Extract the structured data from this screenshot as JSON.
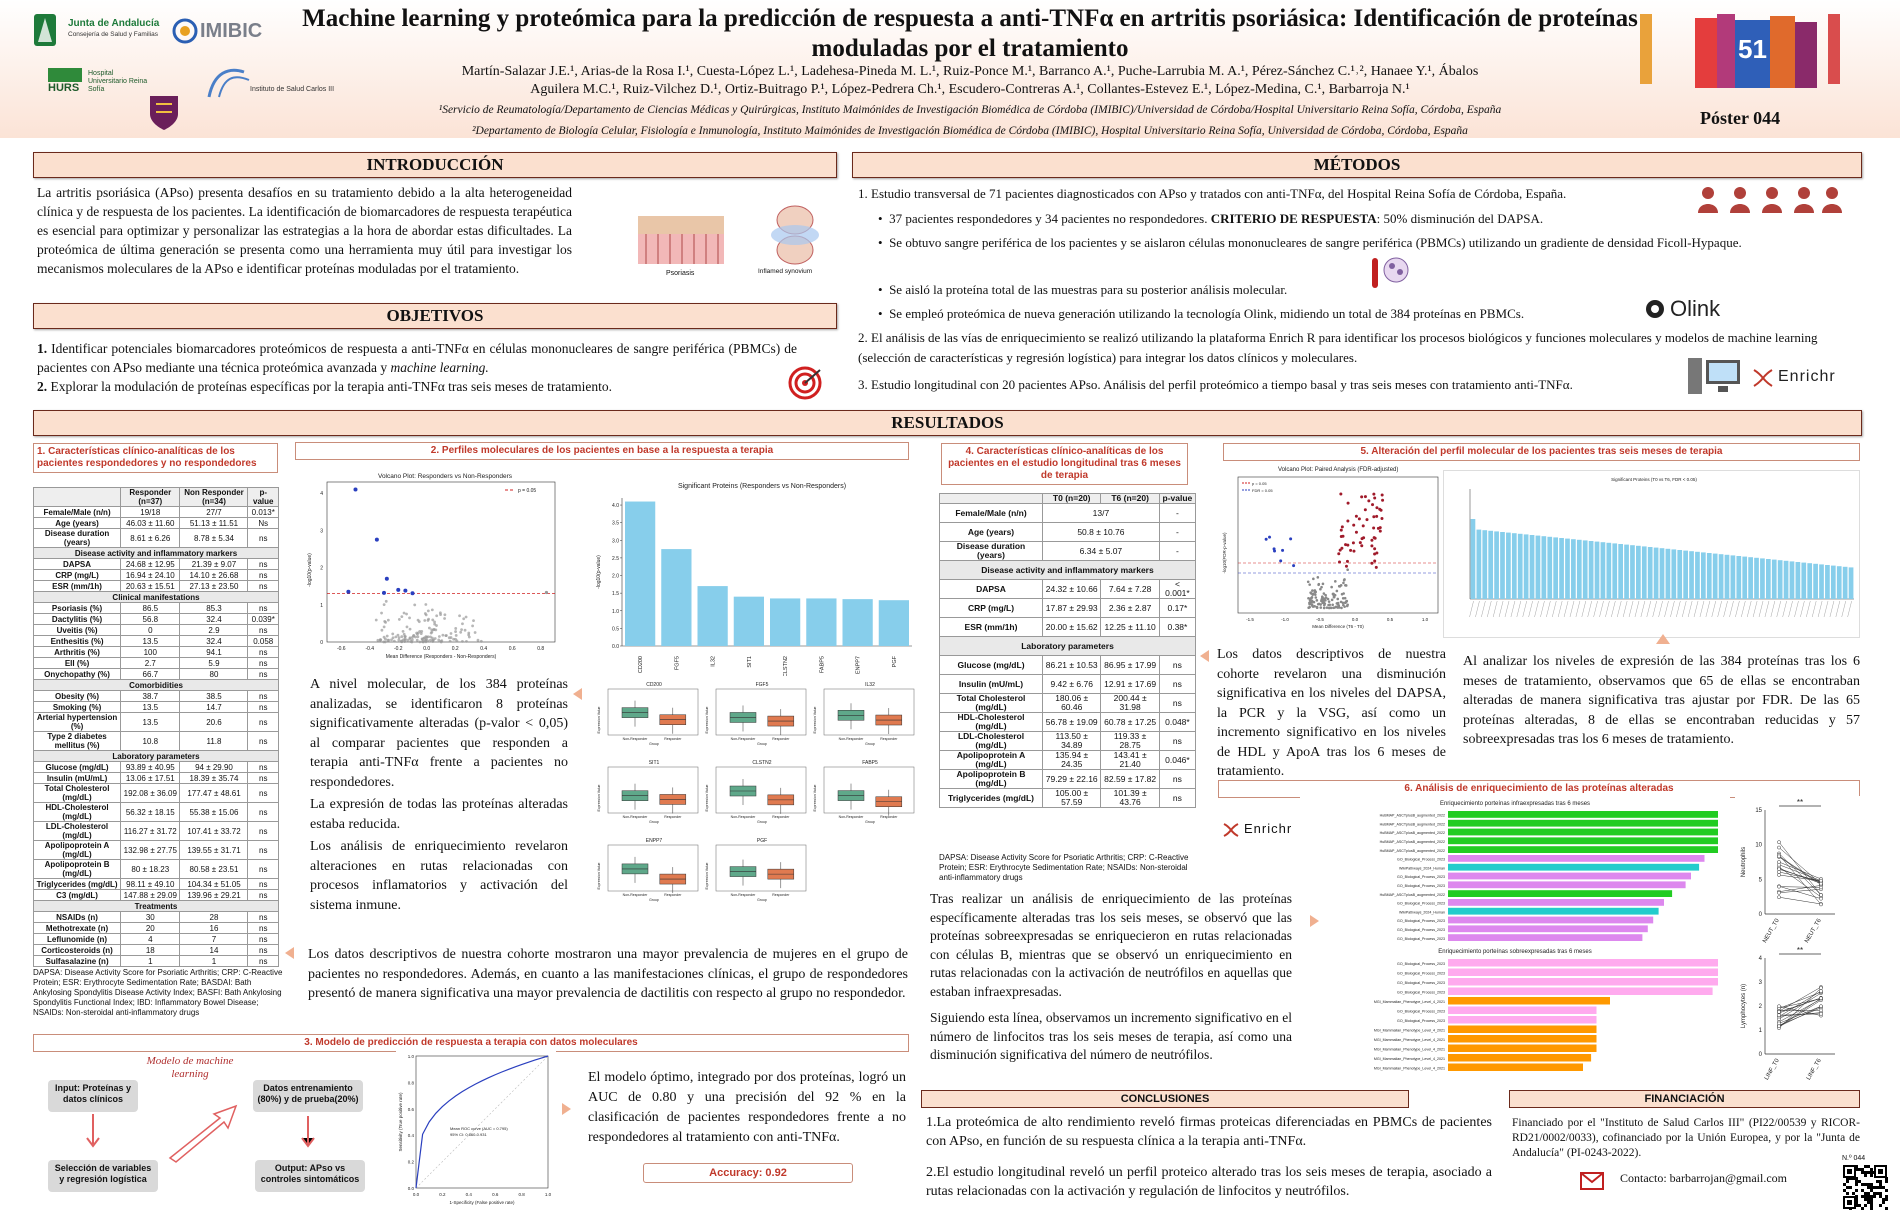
{
  "header": {
    "title": "Machine learning y proteómica para la predicción de respuesta a anti-TNFα en artritis psoriásica: Identificación de proteínas moduladas por el tratamiento",
    "authors_line1": "Martín-Salazar J.E.¹, Arias-de la Rosa I.¹, Cuesta-López L.¹, Ladehesa-Pineda M. L.¹, Ruiz-Ponce M.¹, Barranco A.¹, Puche-Larrubia M. A.¹, Pérez-Sánchez C.¹˒², Hanaee Y.¹, Ábalos",
    "authors_line2": "Aguilera M.C.¹, Ruiz-Vilchez D.¹, Ortiz-Buitrago P.¹, López-Pedrera Ch.¹, Escudero-Contreras A.¹, Collantes-Estevez E.¹, López-Medina, C.¹, Barbarroja N.¹",
    "affiliation1": "¹Servicio de Reumatología/Departamento de Ciencias Médicas y Quirúrgicas, Instituto Maimónides de Investigación Biomédica de Córdoba (IMIBIC)/Universidad de Córdoba/Hospital Universitario Reina Sofía, Córdoba, España",
    "affiliation2": "²Departamento de Biología Celular, Fisiología e Inmunología, Instituto Maimónides de Investigación Biomédica de Córdoba (IMIBIC), Hospital Universitario Reina Sofía, Universidad de Córdoba, Córdoba, España",
    "poster_number": "Póster 044",
    "logos": {
      "junta": "Junta de Andalucía",
      "junta_sub": "Consejería de Salud y Familias",
      "imibic": "IMIBIC",
      "hurs": "HURS",
      "hurs_sub": "Hospital Universitario Reina Sofía",
      "isciii": "Instituto de Salud Carlos III",
      "congress_number": "51"
    }
  },
  "intro": {
    "heading": "INTRODUCCIÓN",
    "text": "La artritis psoriásica (APso) presenta desafíos en su tratamiento debido a la alta heterogeneidad clínica y de respuesta de los pacientes. La identificación de biomarcadores de respuesta terapéutica es esencial para optimizar y personalizar las estrategias a la hora de abordar estas dificultades. La proteómica de última generación se presenta como una herramienta muy útil para investigar los mecanismos moleculares de la APso e identificar proteínas moduladas por el tratamiento.",
    "img_label1": "Psoriasis",
    "img_label2": "Inflamed synovium"
  },
  "objectives": {
    "heading": "OBJETIVOS",
    "item1_num": "1.",
    "item1": "Identificar potenciales biomarcadores proteómicos de respuesta a anti-TNFα en células mononucleares de sangre periférica (PBMCs) de pacientes con APso mediante una técnica proteómica avanzada y ",
    "item1_em": "machine learning.",
    "item2_num": "2.",
    "item2": "Explorar la modulación de proteínas específicas por la terapia anti-TNFα tras seis meses de tratamiento."
  },
  "methods": {
    "heading": "MÉTODOS",
    "l1": "1. Estudio transversal de 71 pacientes diagnosticados con APso y tratados con anti-TNFα, del Hospital Reina Sofía de Córdoba, España.",
    "b1": "37 pacientes respondedores y 34 pacientes no respondedores. ",
    "b1_strong": "CRITERIO DE RESPUESTA",
    "b1_tail": ": 50% disminución del DAPSA.",
    "b2": "Se obtuvo sangre periférica de los pacientes y se aislaron células mononucleares de sangre periférica (PBMCs) utilizando un gradiente de densidad Ficoll-Hypaque.",
    "b3": "Se aisló la proteína total de las muestras para su posterior análisis molecular.",
    "b4": "Se empleó proteómica de nueva generación utilizando la tecnología Olink, midiendo un total de 384 proteínas en PBMCs.",
    "l2": "2. El análisis de las vías de enriquecimiento se realizó utilizando la plataforma Enrich R para identificar los procesos biológicos y funciones moleculares y modelos de machine learning (selección de características y regresión logística) para integrar los datos clínicos y moleculares.",
    "l3": "3. Estudio longitudinal con 20 pacientes APso. Análisis del perfil proteómico a tiempo basal y tras seis meses con tratamiento anti-TNFα.",
    "olink": "Olink",
    "enrichr": "Enrichr"
  },
  "results": {
    "heading": "RESULTADOS",
    "s1_title": "1. Características clínico-analíticas de los pacientes respondedores y no respondedores",
    "s2_title": "2. Perfiles moleculares de los pacientes en base a la respuesta a terapia",
    "s3_title": "3. Modelo de predicción de respuesta a terapia con datos moleculares",
    "s4_title": "4. Características clínico-analíticas de los pacientes en el estudio longitudinal tras 6 meses de terapia",
    "s5_title": "5. Alteración del perfil molecular de los pacientes tras seis meses de terapia",
    "s6_title": "6. Análisis de enriquecimiento de las proteínas alteradas",
    "t1_headers": [
      "",
      "Responder (n=37)",
      "Non Responder (n=34)",
      "p-value"
    ],
    "t1_rows": [
      [
        "Female/Male (n/n)",
        "19/18",
        "27/7",
        "0.013*"
      ],
      [
        "Age (years)",
        "46.03 ± 11.60",
        "51.13 ± 11.51",
        "Ns"
      ],
      [
        "Disease duration (years)",
        "8.61 ± 6.26",
        "8.78 ± 5.34",
        "ns"
      ],
      [
        "#Disease activity and inflammatory markers"
      ],
      [
        "DAPSA",
        "24.68 ± 12.95",
        "21.39 ± 9.07",
        "ns"
      ],
      [
        "CRP (mg/L)",
        "16.94 ± 24.10",
        "14.10 ± 26.68",
        "ns"
      ],
      [
        "ESR (mm/1h)",
        "20.63 ± 15.51",
        "27.13 ± 23.50",
        "ns"
      ],
      [
        "#Clinical manifestations"
      ],
      [
        "Psoriasis (%)",
        "86.5",
        "85.3",
        "ns"
      ],
      [
        "Dactylitis (%)",
        "56.8",
        "32.4",
        "0.039*"
      ],
      [
        "Uveitis (%)",
        "0",
        "2.9",
        "ns"
      ],
      [
        "Enthesitis (%)",
        "13.5",
        "32.4",
        "0.058"
      ],
      [
        "Arthritis (%)",
        "100",
        "94.1",
        "ns"
      ],
      [
        "EII (%)",
        "2.7",
        "5.9",
        "ns"
      ],
      [
        "Onychopathy (%)",
        "66.7",
        "80",
        "ns"
      ],
      [
        "#Comorbidities"
      ],
      [
        "Obesity (%)",
        "38.7",
        "38.5",
        "ns"
      ],
      [
        "Smoking (%)",
        "13.5",
        "14.7",
        "ns"
      ],
      [
        "Arterial hypertension (%)",
        "13.5",
        "20.6",
        "ns"
      ],
      [
        "Type 2 diabetes mellitus (%)",
        "10.8",
        "11.8",
        "ns"
      ],
      [
        "#Laboratory parameters"
      ],
      [
        "Glucose (mg/dL)",
        "93.89 ± 40.95",
        "94 ± 29.90",
        "ns"
      ],
      [
        "Insulin (mU/mL)",
        "13.06 ± 17.51",
        "18.39 ± 35.74",
        "ns"
      ],
      [
        "Total Cholesterol (mg/dL)",
        "192.08 ± 36.09",
        "177.47 ± 48.61",
        "ns"
      ],
      [
        "HDL-Cholesterol (mg/dL)",
        "56.32 ± 18.15",
        "55.38 ± 15.06",
        "ns"
      ],
      [
        "LDL-Cholesterol (mg/dL)",
        "116.27 ± 31.72",
        "107.41 ± 33.72",
        "ns"
      ],
      [
        "Apolipoprotein A (mg/dL)",
        "132.98 ± 27.75",
        "139.55 ± 31.71",
        "ns"
      ],
      [
        "Apolipoprotein B (mg/dL)",
        "80 ± 18.23",
        "80.58 ± 23.51",
        "ns"
      ],
      [
        "Triglycerides (mg/dL)",
        "98.11 ± 49.10",
        "104.34 ± 51.05",
        "ns"
      ],
      [
        "C3 (mg/dL)",
        "147.88 ± 29.09",
        "139.96 ± 29.21",
        "ns"
      ],
      [
        "#Treatments"
      ],
      [
        "NSAIDs (n)",
        "30",
        "28",
        "ns"
      ],
      [
        "Methotrexate (n)",
        "20",
        "16",
        "ns"
      ],
      [
        "Leflunomide (n)",
        "4",
        "7",
        "ns"
      ],
      [
        "Corticosteroids (n)",
        "18",
        "14",
        "ns"
      ],
      [
        "Sulfasalazine (n)",
        "1",
        "1",
        "ns"
      ]
    ],
    "t1_note": "DAPSA: Disease Activity Score for Psoriatic Arthritis; CRP: C-Reactive Protein; ESR: Erythrocyte Sedimentation Rate; BASDAI: Bath Ankylosing Spondylitis Disease Activity Index; BASFI: Bath Ankylosing Spondylitis Functional Index; IBD: Inflammatory Bowel Disease; NSAIDs: Non-steroidal anti-inflammatory drugs",
    "t4_headers": [
      "",
      "T0 (n=20)",
      "T6 (n=20)",
      "p-value"
    ],
    "t4_rows": [
      [
        "Female/Male (n/n)",
        "13/7",
        "",
        "-"
      ],
      [
        "Age (years)",
        "50.8 ± 10.76",
        "",
        "-"
      ],
      [
        "Disease duration (years)",
        "6.34 ± 5.07",
        "",
        "-"
      ],
      [
        "#Disease activity and inflammatory markers"
      ],
      [
        "DAPSA",
        "24.32 ± 10.66",
        "7.64 ± 7.28",
        "< 0.001*"
      ],
      [
        "CRP (mg/L)",
        "17.87 ± 29.93",
        "2.36 ± 2.87",
        "0.17*"
      ],
      [
        "ESR (mm/1h)",
        "20.00 ± 15.62",
        "12.25 ± 11.10",
        "0.38*"
      ],
      [
        "#Laboratory parameters"
      ],
      [
        "Glucose (mg/dL)",
        "86.21 ± 10.53",
        "86.95 ± 17.99",
        "ns"
      ],
      [
        "Insulin (mU/mL)",
        "9.42 ± 6.76",
        "12.91 ± 17.69",
        "ns"
      ],
      [
        "Total Cholesterol (mg/dL)",
        "180.06 ± 60.46",
        "200.44 ± 31.98",
        "ns"
      ],
      [
        "HDL-Cholesterol (mg/dL)",
        "56.78 ± 19.09",
        "60.78 ± 17.25",
        "0.048*"
      ],
      [
        "LDL-Cholesterol (mg/dL)",
        "113.50 ± 34.89",
        "119.33 ± 28.75",
        "ns"
      ],
      [
        "Apolipoprotein A (mg/dL)",
        "135.94 ± 24.35",
        "143.41 ± 21.40",
        "0.046*"
      ],
      [
        "Apolipoprotein B (mg/dL)",
        "79.29 ± 22.16",
        "82.59 ± 17.82",
        "ns"
      ],
      [
        "Triglycerides (mg/dL)",
        "105.00 ± 57.59",
        "101.39 ± 43.76",
        "ns"
      ]
    ],
    "t4_note": "DAPSA: Disease Activity Score for Psoriatic Arthritis; CRP: C-Reactive Protein; ESR: Erythrocyte Sedimentation Rate; NSAIDs: Non-steroidal anti-inflammatory drugs",
    "s2_text1": "A nivel molecular, de los 384 proteínas analizadas, se identificaron 8 proteínas significativamente alteradas (p-valor < 0,05) al comparar pacientes que responden a terapia anti-TNFα frente a pacientes no respondedores.",
    "s2_text2": "La expresión de todas las proteínas alteradas estaba reducida.",
    "s2_text3": "Los análisis de enriquecimiento revelaron alteraciones en rutas relacionadas con procesos inflamatorios y activación del sistema inmune.",
    "s1_text": "Los datos descriptivos de nuestra cohorte mostraron una mayor prevalencia de mujeres en el grupo de pacientes no respondedores. Además, en cuanto a las manifestaciones clínicas, el grupo de respondedores presentó de manera significativa una mayor prevalencia de dactilitis con respecto al grupo no respondedor.",
    "s3_text": "El modelo óptimo, integrado por dos proteínas, logró un AUC de 0.80 y una precisión del 92 % en la clasificación de pacientes respondedores frente a no respondedores al tratamiento con anti-TNFα.",
    "accuracy": "Accuracy: 0.92",
    "flow_title": "Modelo de machine learning",
    "flow_box1": "Input: Proteínas y datos clínicos",
    "flow_box2": "Datos entrenamiento (80%) y de prueba(20%)",
    "flow_box3": "Selección de variables y regresión logística",
    "flow_box4": "Output: APso vs controles sintomáticos",
    "s4_text": "Los datos descriptivos de nuestra cohorte revelaron una disminución significativa en los niveles del DAPSA, la PCR y la VSG, así como un incremento significativo en los niveles de HDL y ApoA tras los 6 meses de tratamiento.",
    "s5_text": "Al analizar los niveles de expresión de las 384 proteínas tras los 6 meses de tratamiento, observamos que 65 de ellas se encontraban alteradas de manera significativa tras ajustar por FDR. De las 65 proteínas alteradas, 8 de ellas se encontraban reducidas y 57 sobreexpresadas tras los 6 meses de tratamiento.",
    "s6_text1": "Tras realizar un análisis de enriquecimiento de las proteínas específicamente alteradas tras los seis meses, se observó que las proteínas sobreexpresadas se enriquecieron en rutas relacionadas con células B, mientras que se observó un enriquecimiento en rutas relacionadas con la activación de neutrófilos en aquellas que estaban infraexpresadas.",
    "s6_text2": "Siguiendo esta línea, observamos un incremento significativo en el número de linfocitos tras los seis meses de terapia, así como una disminución significativa del número de neutrófilos.",
    "enrich_title1": "Enriquecimiento porteínas infraexpresadas tras 6 meses",
    "enrich_title2": "Enriquecimiento porteínas sobreexpresadas tras 6 meses",
    "neut_axis": "Neutrophils",
    "lymph_axis": "Lymphocytes (n)",
    "neut_t0": "NEUT_T0",
    "neut_t6": "NEUT_T6",
    "linf_t0": "LINF_T0",
    "linf_t6": "LINF_T6",
    "sig": "**"
  },
  "conclusions": {
    "heading": "CONCLUSIONES",
    "c1": "1.La proteómica de alto rendimiento reveló firmas proteicas diferenciadas en PBMCs de pacientes con APso, en función de su respuesta clínica a la terapia anti-TNFα.",
    "c2": "2.El estudio longitudinal reveló un perfil proteico alterado tras los seis meses de terapia, asociado a rutas relacionadas con la activación y regulación de linfocitos y neutrófilos."
  },
  "funding": {
    "heading": "FINANCIACIÓN",
    "text": "Financiado por el \"Instituto de Salud Carlos III\" (PI22/00539 y RICOR-RD21/0002/0033), cofinanciado por la Unión Europea, y por la \"Junta de Andalucía\" (PI-0243-2022).",
    "contact": "Contacto: barbarrojan@gmail.com",
    "qr_label": "N.º 044"
  },
  "chart_data": [
    {
      "type": "scatter",
      "title": "Volcano Plot: Responders vs Non-Responders",
      "xlabel": "Mean Difference (Responders - Non-Responders)",
      "ylabel": "-log10(p-value)",
      "legend": [
        "p = 0.05"
      ],
      "xlim": [
        -0.7,
        0.9
      ],
      "ylim": [
        0,
        4.3
      ],
      "xticks": [
        "-0.6",
        "-0.4",
        "-0.2",
        "0.0",
        "0.2",
        "0.4",
        "0.6",
        "0.8"
      ],
      "yticks": [
        "0",
        "1",
        "2",
        "3",
        "4"
      ]
    },
    {
      "type": "bar",
      "title": "Significant Proteins (Responders vs Non-Responders)",
      "ylabel": "-log10(p-value)",
      "categories": [
        "CD200",
        "FGF5",
        "IL32",
        "SIT1",
        "CLSTN2",
        "FABP5",
        "ENPP7",
        "PGF"
      ],
      "values": [
        4.1,
        2.75,
        1.7,
        1.4,
        1.35,
        1.35,
        1.33,
        1.3
      ],
      "ylim": [
        0,
        4.2
      ],
      "yticks": [
        "0.0",
        "0.5",
        "1.0",
        "1.5",
        "2.0",
        "2.5",
        "3.0",
        "3.5",
        "4.0"
      ]
    },
    {
      "type": "box",
      "panels": [
        "CD200",
        "FGF5",
        "IL32",
        "SIT1",
        "CLSTN2",
        "FABP5",
        "ENPP7",
        "PGF"
      ],
      "groups": [
        "Non-Responder",
        "Responder"
      ],
      "xlabel": "Group",
      "ylabel": "Expression Value"
    },
    {
      "type": "line",
      "title": "",
      "xlabel": "1-Specificity (False positive rate)",
      "ylabel": "Sensitivity (True positive rate)",
      "legend": [
        "Mean ROC curve (AUC = 0.795)",
        "95% CI: 0.660-0.931"
      ],
      "auc": 0.8,
      "xticks": [
        "0.0",
        "0.2",
        "0.4",
        "0.6",
        "0.8",
        "1.0"
      ],
      "yticks": [
        "0.0",
        "0.2",
        "0.4",
        "0.6",
        "0.8",
        "1.0"
      ]
    },
    {
      "type": "scatter",
      "title": "Volcano Plot: Paired Analysis (FDR-adjusted)",
      "xlabel": "Mean Difference (T6 - T0)",
      "ylabel": "-log10(FDR-p-value)",
      "legend": [
        "p = 0.05",
        "FDR = 0.05"
      ],
      "xticks": [
        "-1.5",
        "-1.0",
        "-0.5",
        "0.0",
        "0.5",
        "1.0"
      ]
    },
    {
      "type": "bar",
      "title": "Significant Proteins (T0 vs T6, FDR < 0.05)",
      "n_bars": 65
    },
    {
      "type": "bar",
      "orientation": "horizontal",
      "title": "Enriquecimiento porteínas infraexpresadas tras 6 meses",
      "categories": [
        "HuBMAP_ASCTplusB_augmented_2022",
        "HuBMAP_ASCTplusB_augmented_2022",
        "HuBMAP_ASCTplusB_augmented_2022",
        "HuBMAP_ASCTplusB_augmented_2022",
        "HuBMAP_ASCTplusB_augmented_2022",
        "GO_Biological_Process_2023",
        "WikiPathways_2024_Human",
        "GO_Biological_Process_2023",
        "GO_Biological_Process_2023",
        "HuBMAP_ASCTplusB_augmented_2022",
        "GO_Biological_Process_2023",
        "WikiPathways_2024_Human",
        "GO_Biological_Process_2023",
        "GO_Biological_Process_2023",
        "GO_Biological_Process_2023"
      ],
      "values": [
        1.0,
        1.0,
        1.0,
        1.0,
        1.0,
        0.95,
        0.93,
        0.9,
        0.88,
        0.83,
        0.8,
        0.78,
        0.76,
        0.74,
        0.72
      ],
      "colors": [
        "#22cc22",
        "#22cc22",
        "#22cc22",
        "#22cc22",
        "#22cc22",
        "#dd88ee",
        "#22cccc",
        "#dd88ee",
        "#dd88ee",
        "#22cc22",
        "#dd88ee",
        "#22cccc",
        "#dd88ee",
        "#dd88ee",
        "#dd88ee"
      ]
    },
    {
      "type": "bar",
      "orientation": "horizontal",
      "title": "Enriquecimiento porteínas sobreexpresadas tras 6 meses",
      "categories": [
        "GO_Biological_Process_2023",
        "GO_Biological_Process_2023",
        "GO_Biological_Process_2023",
        "GO_Biological_Process_2023",
        "MGI_Mammalian_Phenotype_Level_4_2021",
        "GO_Biological_Process_2023",
        "GO_Biological_Process_2023",
        "MGI_Mammalian_Phenotype_Level_4_2021",
        "MGI_Mammalian_Phenotype_Level_4_2021",
        "MGI_Mammalian_Phenotype_Level_4_2021",
        "MGI_Mammalian_Phenotype_Level_4_2021",
        "MGI_Mammalian_Phenotype_Level_4_2021"
      ],
      "values": [
        1.0,
        1.0,
        1.0,
        0.98,
        0.6,
        0.55,
        0.55,
        0.55,
        0.55,
        0.55,
        0.53,
        0.5
      ],
      "colors": [
        "#ffaaee",
        "#ffaaee",
        "#ffaaee",
        "#ffaaee",
        "#ff9900",
        "#ffaaee",
        "#ffaaee",
        "#ff9900",
        "#ff9900",
        "#ff9900",
        "#ff9900",
        "#ff9900"
      ]
    },
    {
      "type": "line",
      "title": "",
      "ylabel": "Neutrophils",
      "categories": [
        "NEUT_T0",
        "NEUT_T6"
      ],
      "yticks": [
        "0",
        "5",
        "10",
        "15"
      ],
      "ylim": [
        0,
        15
      ]
    },
    {
      "type": "line",
      "title": "",
      "ylabel": "Lymphocytes (n)",
      "categories": [
        "LINF_T0",
        "LINF_T6"
      ],
      "yticks": [
        "0",
        "1",
        "2",
        "3",
        "4"
      ],
      "ylim": [
        0,
        4
      ]
    }
  ]
}
